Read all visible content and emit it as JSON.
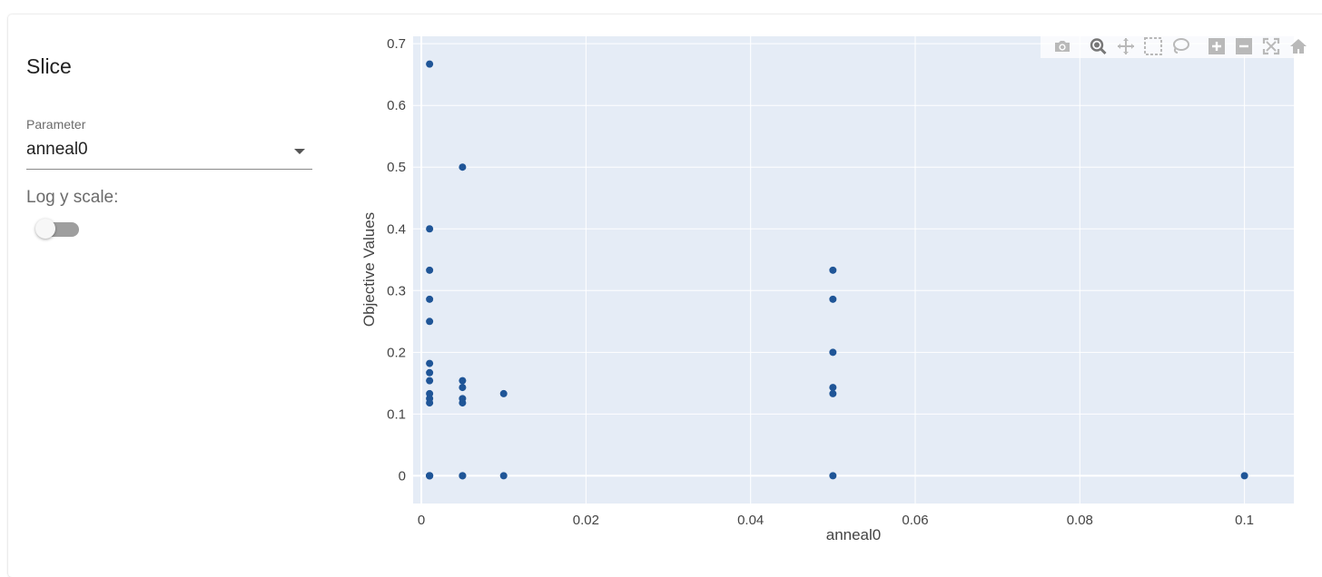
{
  "panel": {
    "title": "Slice",
    "parameter_label": "Parameter",
    "parameter_value": "anneal0",
    "log_label": "Log y scale:",
    "log_enabled": false
  },
  "modebar": {
    "buttons": [
      "camera-icon",
      "zoom-icon",
      "pan-icon",
      "box-select-icon",
      "lasso-select-icon",
      "zoom-in-icon",
      "zoom-out-icon",
      "autoscale-icon",
      "reset-axes-icon"
    ]
  },
  "colors": {
    "marker": "#1f5597",
    "plot_bg": "#e5ecf6",
    "grid": "#ffffff",
    "modebar_icon": "#b9b9b9",
    "modebar_active": "#777777"
  },
  "chart_data": {
    "type": "scatter",
    "title": "",
    "xlabel": "anneal0",
    "ylabel": "Objective Values",
    "xlim": [
      -0.001,
      0.106
    ],
    "ylim": [
      -0.045,
      0.712
    ],
    "xticks": [
      0,
      0.02,
      0.04,
      0.06,
      0.08,
      0.1
    ],
    "xtick_labels": [
      "0",
      "0.02",
      "0.04",
      "0.06",
      "0.08",
      "0.1"
    ],
    "yticks": [
      0,
      0.1,
      0.2,
      0.3,
      0.4,
      0.5,
      0.6,
      0.7
    ],
    "ytick_labels": [
      "0",
      "0.1",
      "0.2",
      "0.3",
      "0.4",
      "0.5",
      "0.6",
      "0.7"
    ],
    "grid": true,
    "series": [
      {
        "x": [
          0.001,
          0.001,
          0.001,
          0.001,
          0.001,
          0.001,
          0.001,
          0.001,
          0.001,
          0.001,
          0.001,
          0.001,
          0.001,
          0.001,
          0.001,
          0.005,
          0.005,
          0.005,
          0.005,
          0.005,
          0.005,
          0.005,
          0.01,
          0.01,
          0.05,
          0.05,
          0.05,
          0.05,
          0.05,
          0.05,
          0.1
        ],
        "y": [
          0.667,
          0.4,
          0.333,
          0.286,
          0.25,
          0.182,
          0.167,
          0.154,
          0.133,
          0.125,
          0.118,
          0.0,
          0.0,
          0.0,
          0.0,
          0.5,
          0.154,
          0.143,
          0.125,
          0.118,
          0.0,
          0.0,
          0.133,
          0.0,
          0.333,
          0.286,
          0.2,
          0.143,
          0.133,
          0.0,
          0.0
        ]
      }
    ]
  }
}
